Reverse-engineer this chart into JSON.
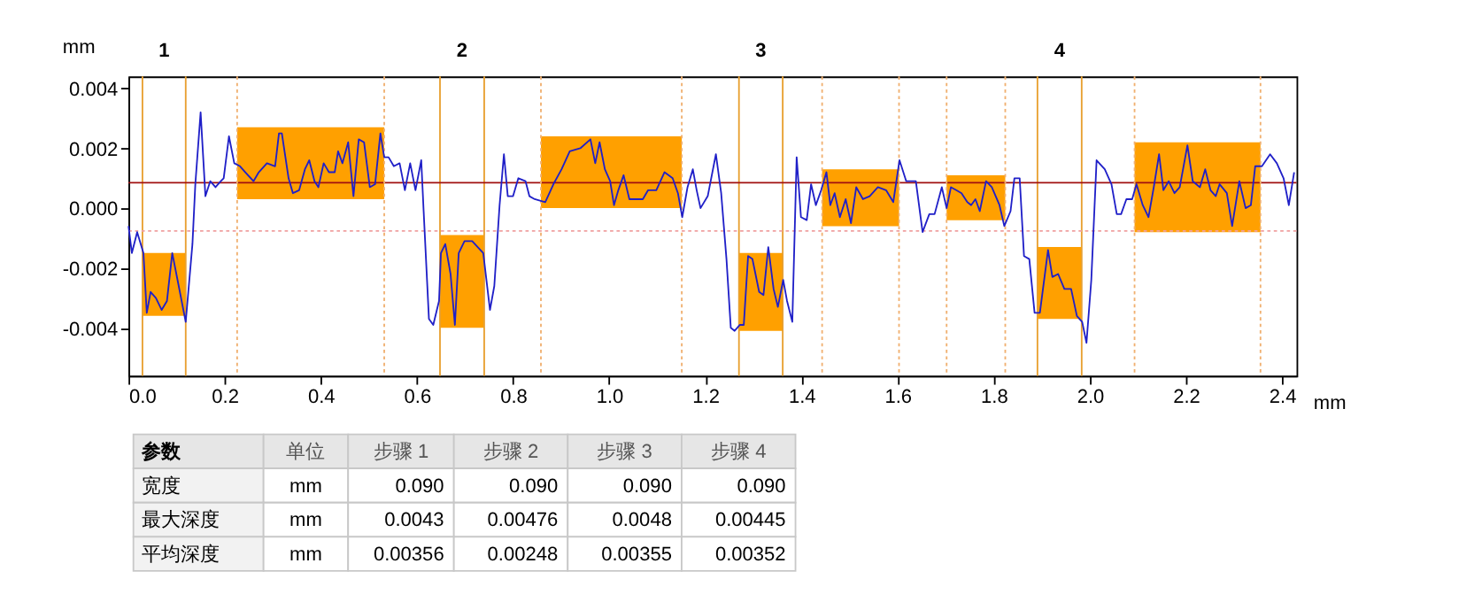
{
  "chart_data": {
    "type": "line",
    "xlabel": "mm",
    "ylabel": "mm",
    "xlim": [
      0,
      2.43
    ],
    "ylim": [
      -0.0056,
      0.0044
    ],
    "xticks": [
      {
        "value": 0,
        "label": "0.0"
      },
      {
        "value": 0.2,
        "label": "0.2"
      },
      {
        "value": 0.4,
        "label": "0.4"
      },
      {
        "value": 0.6,
        "label": "0.6"
      },
      {
        "value": 0.8,
        "label": "0.8"
      },
      {
        "value": 1,
        "label": "1.0"
      },
      {
        "value": 1.2,
        "label": "1.2"
      },
      {
        "value": 1.4,
        "label": "1.4"
      },
      {
        "value": 1.6,
        "label": "1.6"
      },
      {
        "value": 1.8,
        "label": "1.8"
      },
      {
        "value": 2,
        "label": "2.0"
      },
      {
        "value": 2.2,
        "label": "2.2"
      },
      {
        "value": 2.4,
        "label": "2.4"
      }
    ],
    "yticks": [
      {
        "value": -0.004,
        "label": "-0.004"
      },
      {
        "value": -0.002,
        "label": "-0.002"
      },
      {
        "value": 0,
        "label": "0.000"
      },
      {
        "value": 0.002,
        "label": "0.002"
      },
      {
        "value": 0.004,
        "label": "0.004"
      }
    ],
    "grid": false,
    "series": [
      {
        "color": "#2020c8",
        "x": [
          0,
          0.007,
          0.018,
          0.031,
          0.038,
          0.046,
          0.057,
          0.069,
          0.08,
          0.091,
          0.102,
          0.119,
          0.133,
          0.139,
          0.15,
          0.16,
          0.17,
          0.181,
          0.192,
          0.198,
          0.209,
          0.22,
          0.232,
          0.243,
          0.26,
          0.271,
          0.288,
          0.305,
          0.313,
          0.319,
          0.333,
          0.342,
          0.355,
          0.367,
          0.376,
          0.387,
          0.395,
          0.406,
          0.417,
          0.429,
          0.436,
          0.445,
          0.457,
          0.468,
          0.479,
          0.49,
          0.502,
          0.513,
          0.524,
          0.532,
          0.541,
          0.552,
          0.564,
          0.575,
          0.586,
          0.597,
          0.609,
          0.614,
          0.625,
          0.634,
          0.646,
          0.65,
          0.659,
          0.67,
          0.679,
          0.687,
          0.699,
          0.715,
          0.738,
          0.752,
          0.761,
          0.772,
          0.781,
          0.789,
          0.8,
          0.811,
          0.826,
          0.834,
          0.845,
          0.867,
          0.884,
          0.901,
          0.918,
          0.94,
          0.961,
          0.971,
          0.98,
          0.991,
          1.002,
          1.01,
          1.019,
          1.03,
          1.042,
          1.07,
          1.081,
          1.098,
          1.115,
          1.132,
          1.143,
          1.152,
          1.163,
          1.174,
          1.182,
          1.19,
          1.205,
          1.222,
          1.233,
          1.244,
          1.253,
          1.261,
          1.272,
          1.28,
          1.289,
          1.298,
          1.312,
          1.321,
          1.331,
          1.342,
          1.351,
          1.362,
          1.37,
          1.381,
          1.39,
          1.399,
          1.411,
          1.42,
          1.43,
          1.441,
          1.452,
          1.46,
          1.469,
          1.48,
          1.492,
          1.503,
          1.514,
          1.528,
          1.542,
          1.559,
          1.576,
          1.591,
          1.604,
          1.618,
          1.638,
          1.652,
          1.666,
          1.677,
          1.692,
          1.702,
          1.711,
          1.722,
          1.733,
          1.745,
          1.753,
          1.762,
          1.771,
          1.784,
          1.796,
          1.812,
          1.822,
          1.835,
          1.843,
          1.854,
          1.863,
          1.874,
          1.885,
          1.896,
          1.913,
          1.922,
          1.934,
          1.947,
          1.961,
          1.973,
          1.984,
          1.993,
          2.003,
          2.014,
          2.031,
          2.045,
          2.056,
          2.065,
          2.076,
          2.088,
          2.097,
          2.11,
          2.122,
          2.133,
          2.144,
          2.153,
          2.164,
          2.176,
          2.187,
          2.203,
          2.214,
          2.229,
          2.24,
          2.251,
          2.262,
          2.27,
          2.285,
          2.296,
          2.311,
          2.324,
          2.335,
          2.344,
          2.358,
          2.375,
          2.389,
          2.403,
          2.414,
          2.425
        ],
        "values": [
          -0.0006,
          -0.0015,
          -0.0008,
          -0.0015,
          -0.0035,
          -0.0028,
          -0.003,
          -0.0034,
          -0.0031,
          -0.0015,
          -0.0024,
          -0.0038,
          -0.0012,
          0.0008,
          0.0032,
          0.0004,
          0.0009,
          0.0007,
          0.0009,
          0.001,
          0.0024,
          0.0015,
          0.0014,
          0.0012,
          0.0009,
          0.0012,
          0.0015,
          0.0014,
          0.0025,
          0.0025,
          0.001,
          0.0005,
          0.0006,
          0.0013,
          0.0016,
          0.0009,
          0.0007,
          0.0015,
          0.0012,
          0.0012,
          0.0019,
          0.0015,
          0.0022,
          0.0004,
          0.0023,
          0.0022,
          0.0007,
          0.0008,
          0.0025,
          0.0017,
          0.0017,
          0.0014,
          0.0015,
          0.0006,
          0.0015,
          0.0006,
          0.0016,
          -0.0001,
          -0.0037,
          -0.0039,
          -0.0031,
          -0.0015,
          -0.0012,
          -0.0022,
          -0.0039,
          -0.0015,
          -0.0011,
          -0.0011,
          -0.0015,
          -0.0034,
          -0.0026,
          0.0001,
          0.0018,
          0.0004,
          0.0004,
          0.001,
          0.0009,
          0.0004,
          0.0003,
          0.0002,
          0.0008,
          0.0013,
          0.0019,
          0.002,
          0.0023,
          0.0015,
          0.0022,
          0.0013,
          0.0009,
          0.0001,
          0.0006,
          0.0011,
          0.0003,
          0.0003,
          0.0006,
          0.0006,
          0.0012,
          0.001,
          0.0005,
          -0.0003,
          0.0007,
          0.0013,
          0.0006,
          0,
          0.0004,
          0.0018,
          0.0005,
          -0.0017,
          -0.004,
          -0.0041,
          -0.0039,
          -0.0039,
          -0.0016,
          -0.0017,
          -0.0028,
          -0.0029,
          -0.0013,
          -0.0027,
          -0.0033,
          -0.0024,
          -0.0031,
          -0.0038,
          0.0017,
          -0.0003,
          -0.0004,
          0.0008,
          0.0001,
          0.0006,
          0.0012,
          0.0001,
          0.0005,
          -0.0003,
          0.0003,
          -0.0005,
          0.0007,
          0.0003,
          0.0004,
          0.0007,
          0.0006,
          0.0002,
          0.0016,
          0.0009,
          0.0009,
          -0.0008,
          -0.0002,
          -0.0002,
          0.0007,
          0,
          0.0007,
          0.0006,
          0.0005,
          0.0002,
          0.0001,
          0.0003,
          -0.0001,
          0.0009,
          0.0007,
          0.0001,
          -0.0006,
          -0.0001,
          0.001,
          0.001,
          -0.0016,
          -0.0017,
          -0.0035,
          -0.0035,
          -0.0014,
          -0.0023,
          -0.0022,
          -0.0027,
          -0.0027,
          -0.0036,
          -0.0038,
          -0.0045,
          -0.0024,
          0.0016,
          0.0013,
          0.0008,
          -0.0002,
          -0.0002,
          0.0003,
          0.0003,
          0.0008,
          0.0001,
          -0.0003,
          0.0007,
          0.0018,
          0.0006,
          0.0009,
          0.0005,
          0.0007,
          0.0021,
          0.0009,
          0.0007,
          0.0013,
          0.0006,
          0.0004,
          0.0008,
          0.0005,
          -0.0006,
          0.0009,
          0,
          0.0001,
          0.0014,
          0.0014,
          0.0018,
          0.0015,
          0.001,
          0.0001,
          0.0012
        ]
      },
      {
        "type": "bar",
        "color": "#ffa000",
        "x": [
          0.074,
          0.379,
          0.694,
          1.0045,
          1.3155,
          1.523,
          1.763,
          1.937,
          2.224
        ],
        "values": [
          0.0021,
          0.0024,
          0.0031,
          0.0024,
          0.0026,
          0.0019,
          0.0015,
          0.0024,
          0.003
        ],
        "base": [
          -0.0036,
          0.0003,
          -0.004,
          0,
          -0.0041,
          -0.0006,
          -0.0004,
          -0.0037,
          -0.0008
        ]
      }
    ],
    "ref_lines": [
      {
        "axis": "x",
        "value": 0.029,
        "color": "#e8a030",
        "line_style": "solid"
      },
      {
        "axis": "x",
        "value": 0.119,
        "color": "#e8a030",
        "line_style": "solid"
      },
      {
        "axis": "x",
        "value": 0.648,
        "color": "#e8a030",
        "line_style": "solid"
      },
      {
        "axis": "x",
        "value": 0.74,
        "color": "#e8a030",
        "line_style": "solid"
      },
      {
        "axis": "x",
        "value": 1.27,
        "color": "#e8a030",
        "line_style": "solid"
      },
      {
        "axis": "x",
        "value": 1.361,
        "color": "#e8a030",
        "line_style": "solid"
      },
      {
        "axis": "x",
        "value": 1.891,
        "color": "#e8a030",
        "line_style": "solid"
      },
      {
        "axis": "x",
        "value": 1.983,
        "color": "#e8a030",
        "line_style": "solid"
      },
      {
        "axis": "y",
        "value": 0.00085,
        "color": "#a01010",
        "line_style": "solid"
      },
      {
        "axis": "y",
        "value": -0.00076,
        "color": "#f0a0a0",
        "line_style": "dotted"
      },
      {
        "axis": "x",
        "value": 0.226,
        "color": "#f0b070",
        "line_style": "dotted"
      },
      {
        "axis": "x",
        "value": 0.532,
        "color": "#f0b070",
        "line_style": "dotted"
      },
      {
        "axis": "x",
        "value": 0.858,
        "color": "#f0b070",
        "line_style": "dotted"
      },
      {
        "axis": "x",
        "value": 1.151,
        "color": "#f0b070",
        "line_style": "dotted"
      },
      {
        "axis": "x",
        "value": 1.443,
        "color": "#f0b070",
        "line_style": "dotted"
      },
      {
        "axis": "x",
        "value": 1.603,
        "color": "#f0b070",
        "line_style": "dotted"
      },
      {
        "axis": "x",
        "value": 1.702,
        "color": "#f0b070",
        "line_style": "dotted"
      },
      {
        "axis": "x",
        "value": 1.824,
        "color": "#f0b070",
        "line_style": "dotted"
      },
      {
        "axis": "x",
        "value": 2.093,
        "color": "#f0b070",
        "line_style": "dotted"
      },
      {
        "axis": "x",
        "value": 2.355,
        "color": "#f0b070",
        "line_style": "dotted"
      }
    ],
    "annotations": [
      "1",
      "2",
      "3",
      "4",
      "参数",
      "单位",
      "步骤 1",
      "步骤 2",
      "步骤 3",
      "步骤 4",
      "宽度",
      "mm",
      "0.090",
      "0.090",
      "0.090",
      "0.090",
      "最大深度",
      "mm",
      "0.0043",
      "0.00476",
      "0.0048",
      "0.00445",
      "平均深度",
      "mm",
      "0.00356",
      "0.00248",
      "0.00355",
      "0.00352"
    ]
  }
}
